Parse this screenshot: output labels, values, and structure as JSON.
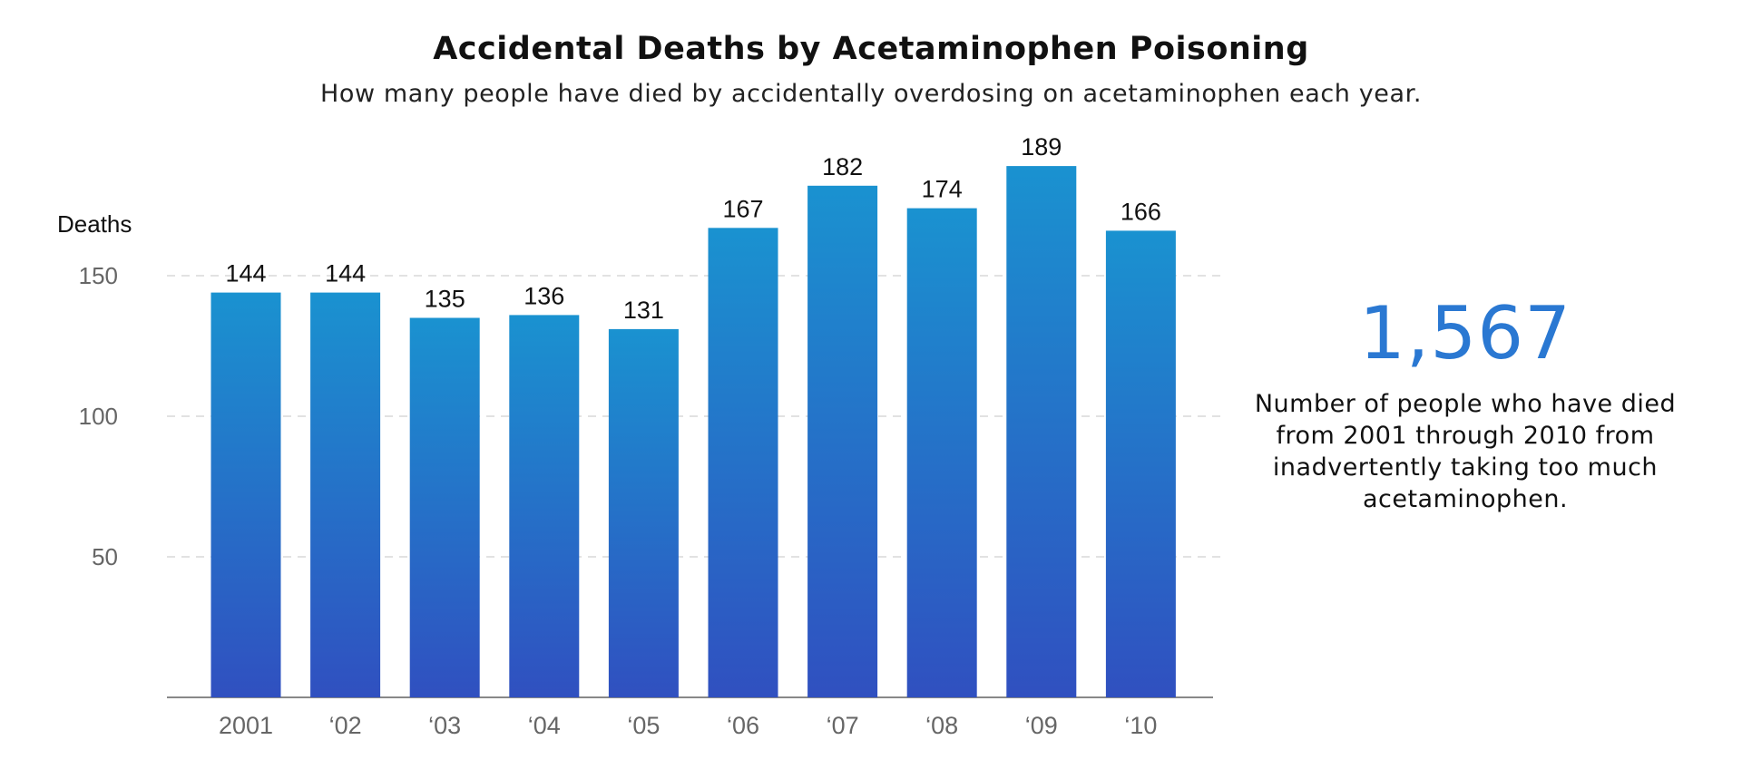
{
  "title": "Accidental Deaths by Acetaminophen Poisoning",
  "subtitle": "How many people have died by accidentally overdosing on acetaminophen each year.",
  "summary": {
    "total": "1,567",
    "description": "Number of people who have died from 2001 through 2010 from inadvertently taking too much acetaminophen.",
    "color": "#2a78d2"
  },
  "chart_data": {
    "type": "bar",
    "categories": [
      "2001",
      "‘02",
      "‘03",
      "‘04",
      "‘05",
      "‘06",
      "‘07",
      "‘08",
      "‘09",
      "‘10"
    ],
    "values": [
      144,
      144,
      135,
      136,
      131,
      167,
      182,
      174,
      189,
      166
    ],
    "ylabel": "Deaths",
    "yticks": [
      50,
      100,
      150
    ],
    "ylim": [
      0,
      200
    ],
    "grid": "dashed horizontal",
    "colors": {
      "bar_top": "#1a92d0",
      "bar_bottom": "#3050c0",
      "grid": "#d8d8d8",
      "axis": "#888888",
      "tick_text": "#666666"
    }
  }
}
